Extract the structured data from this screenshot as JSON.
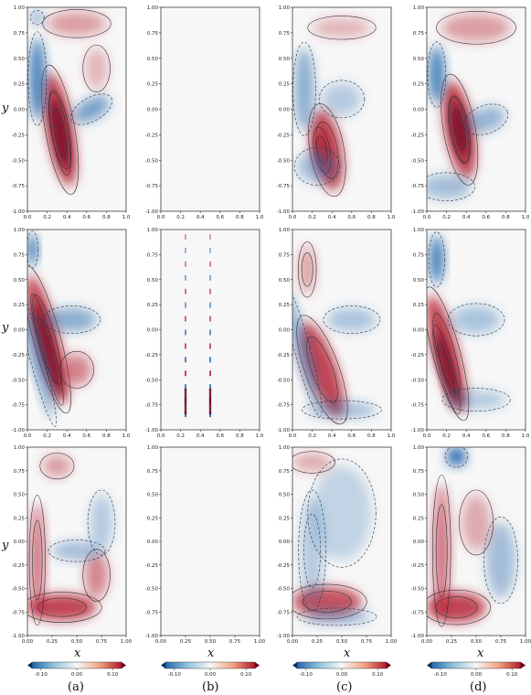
{
  "chart_data": {
    "type": "heatmap",
    "colormap": "RdBu_r",
    "colors": {
      "negative": "#2166ac",
      "zero": "#f7f7f7",
      "positive": "#b2182b"
    },
    "axes": {
      "xlabel": "x",
      "ylabel": "y",
      "xlim": [
        0,
        1
      ],
      "ylim": [
        -1,
        1
      ],
      "x_ticks_rows12": [
        "0.0",
        "0.2",
        "0.4",
        "0.6",
        "0.8",
        "1.0"
      ],
      "x_ticks_row3": [
        "0.00",
        "0.25",
        "0.50",
        "0.75",
        "1.00"
      ],
      "y_ticks": [
        "1.00",
        "0.75",
        "0.50",
        "0.25",
        "0.00",
        "-0.25",
        "-0.50",
        "-0.75",
        "-1.00"
      ]
    },
    "colorbar": {
      "vmin": -0.1,
      "vmax": 0.1,
      "ticks": [
        "-0.10",
        "0.00",
        "0.10"
      ],
      "extend": "both"
    },
    "columns": [
      {
        "label": "(a)"
      },
      {
        "label": "(b)"
      },
      {
        "label": "(c)"
      },
      {
        "label": "(d)"
      }
    ],
    "rows": 3,
    "contour_lines": {
      "negative_style": "dashed",
      "positive_style": "solid",
      "color": "#333333"
    }
  }
}
